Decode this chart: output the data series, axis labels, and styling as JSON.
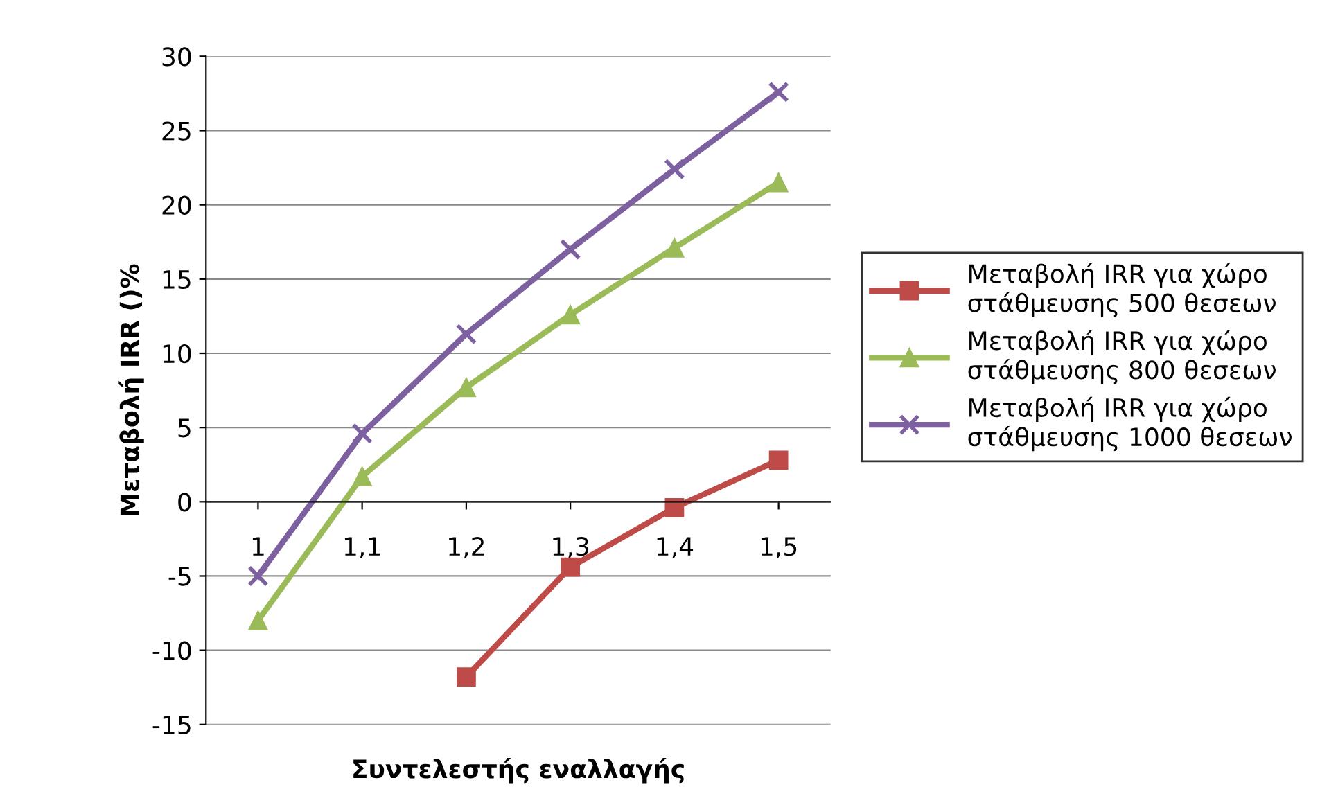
{
  "chart_data": {
    "type": "line",
    "xlabel": "Συντελεστής εναλλαγής",
    "ylabel": "Μεταβολή IRR ()%",
    "categories": [
      "1",
      "1,1",
      "1,2",
      "1,3",
      "1,4",
      "1,5"
    ],
    "series": [
      {
        "name": "Μεταβολή IRR για χώρο στάθμευσης 500 θεσεων",
        "color": "#be4b48",
        "marker": "square",
        "values": [
          null,
          null,
          -11.8,
          -4.4,
          -0.4,
          2.8
        ]
      },
      {
        "name": "Μεταβολή IRR για χώρο στάθμευσης 800 θεσεων",
        "color": "#9bbb59",
        "marker": "triangle",
        "values": [
          -8,
          1.7,
          7.7,
          12.6,
          17.1,
          21.5
        ]
      },
      {
        "name": "Μεταβολή IRR για χώρο στάθμευσης 1000 θεσεων",
        "color": "#7d60a0",
        "marker": "cross",
        "values": [
          -5,
          4.6,
          11.3,
          17,
          22.4,
          27.6
        ]
      }
    ],
    "ylim": [
      -15,
      30
    ],
    "yticks": [
      -15,
      -10,
      -5,
      0,
      5,
      10,
      15,
      20,
      25,
      30
    ],
    "grid": "y",
    "legend": "right",
    "line_style": "solid"
  }
}
